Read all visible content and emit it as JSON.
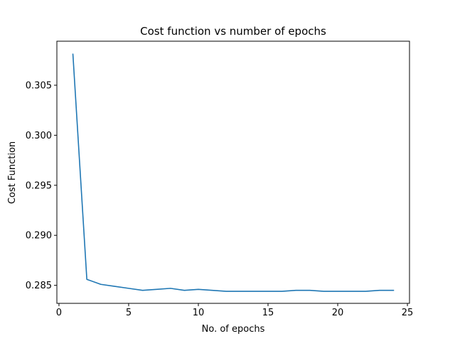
{
  "chart_data": {
    "type": "line",
    "title": "Cost function vs number of epochs",
    "xlabel": "No. of epochs",
    "ylabel": "Cost Function",
    "xlim": [
      -0.15,
      25.15
    ],
    "ylim": [
      0.2832,
      0.3094
    ],
    "xticks": [
      0,
      5,
      10,
      15,
      20,
      25
    ],
    "xtick_labels": [
      "0",
      "5",
      "10",
      "15",
      "20",
      "25"
    ],
    "yticks": [
      0.285,
      0.29,
      0.295,
      0.3,
      0.305
    ],
    "ytick_labels": [
      "0.285",
      "0.290",
      "0.295",
      "0.300",
      "0.305"
    ],
    "grid": false,
    "series": [
      {
        "color": "#1f77b4",
        "x": [
          1,
          2,
          3,
          4,
          5,
          6,
          7,
          8,
          9,
          10,
          11,
          12,
          13,
          14,
          15,
          16,
          17,
          18,
          19,
          20,
          21,
          22,
          23,
          24
        ],
        "y": [
          0.3081,
          0.2856,
          0.2851,
          0.2849,
          0.2847,
          0.2845,
          0.2846,
          0.2847,
          0.2845,
          0.2846,
          0.2845,
          0.2844,
          0.2844,
          0.2844,
          0.2844,
          0.2844,
          0.2845,
          0.2845,
          0.2844,
          0.2844,
          0.2844,
          0.2844,
          0.2845,
          0.2845
        ]
      }
    ]
  }
}
